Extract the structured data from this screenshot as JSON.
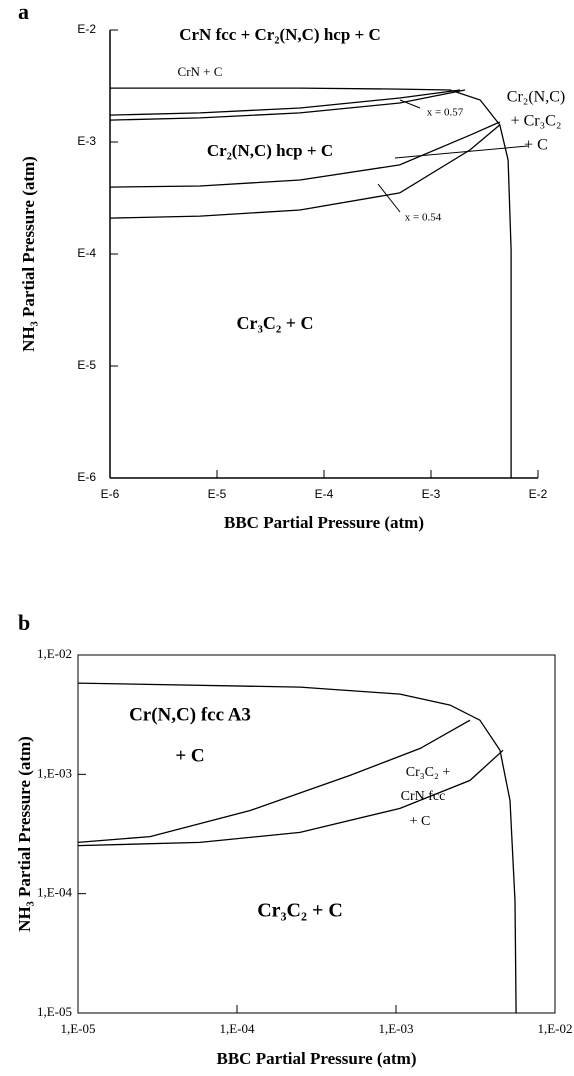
{
  "chart_data": [
    {
      "type": "line",
      "panel_label": "a",
      "xlabel": "BBC Partial Pressure (atm)",
      "ylabel": "NH₃ Partial Pressure (atm)",
      "log_x": true,
      "log_y": true,
      "box": false,
      "xlim": [
        1e-06,
        0.01
      ],
      "ylim": [
        1e-06,
        0.01
      ],
      "xticks": [
        {
          "value": 1e-06,
          "label": "E-6"
        },
        {
          "value": 1e-05,
          "label": "E-5"
        },
        {
          "value": 0.0001,
          "label": "E-4"
        },
        {
          "value": 0.001,
          "label": "E-3"
        },
        {
          "value": 0.01,
          "label": "E-2"
        }
      ],
      "yticks": [
        {
          "value": 1e-06,
          "label": "E-6"
        },
        {
          "value": 1e-05,
          "label": "E-5"
        },
        {
          "value": 0.0001,
          "label": "E-4"
        },
        {
          "value": 0.001,
          "label": "E-3"
        },
        {
          "value": 0.01,
          "label": "E-2"
        }
      ],
      "series": [
        {
          "color": "#000000",
          "x": [
            1e-06,
            5.97e-05,
            0.00051,
            0.00151,
            0.00288,
            0.0044,
            0.00525,
            0.0056,
            0.0056
          ],
          "values": [
            0.00303,
            0.00303,
            0.00297,
            0.00291,
            0.00237,
            0.00142,
            0.00069,
            0.000109,
            1e-06
          ]
        },
        {
          "color": "#000000",
          "x": [
            1e-06,
            6.93e-06,
            5.97e-05,
            0.00051,
            0.00187
          ],
          "values": [
            0.00174,
            0.00182,
            0.00201,
            0.00247,
            0.00291
          ]
        },
        {
          "color": "#000000",
          "x": [
            1e-06,
            6.93e-06,
            5.97e-05,
            0.00051,
            0.00208
          ],
          "values": [
            0.00157,
            0.00164,
            0.00182,
            0.00223,
            0.00291
          ]
        },
        {
          "color": "#000000",
          "x": [
            1e-06,
            6.93e-06,
            5.97e-05,
            0.00051,
            0.00231,
            0.0044
          ],
          "values": [
            0.000396,
            0.000405,
            0.000458,
            0.000624,
            0.00115,
            0.00151
          ]
        },
        {
          "color": "#000000",
          "x": [
            1e-06,
            6.93e-06,
            5.97e-05,
            0.00051,
            0.00231,
            0.0044
          ],
          "values": [
            0.000209,
            0.000218,
            0.000247,
            0.000351,
            0.000849,
            0.00142
          ]
        }
      ],
      "annotations": [
        "CrN fcc + Cr₂(N,C) hcp + C",
        "CrN  +  C",
        "x = 0.57",
        "Cr₂(N,C) hcp + C",
        "x = 0.54",
        "Cr₂(N,C)",
        "+ Cr₃C₂",
        "+ C",
        "Cr₃C₂ + C"
      ]
    },
    {
      "type": "line",
      "panel_label": "b",
      "xlabel": "BBC Partial Pressure (atm)",
      "ylabel": "NH₃ Partial Pressure (atm)",
      "log_x": true,
      "log_y": true,
      "box": true,
      "xlim": [
        1e-05,
        0.01
      ],
      "ylim": [
        1e-05,
        0.01
      ],
      "xticks": [
        {
          "value": 1e-05,
          "label": "1,E-05"
        },
        {
          "value": 0.0001,
          "label": "1,E-04"
        },
        {
          "value": 0.001,
          "label": "1,E-03"
        },
        {
          "value": 0.01,
          "label": "1,E-02"
        }
      ],
      "yticks": [
        {
          "value": 1e-05,
          "label": "1,E-05"
        },
        {
          "value": 0.0001,
          "label": "1,E-04"
        },
        {
          "value": 0.001,
          "label": "1,E-03"
        },
        {
          "value": 0.01,
          "label": "1,E-02"
        }
      ],
      "series": [
        {
          "color": "#000000",
          "x": [
            1e-05,
            0.000249,
            0.00106,
            0.00219,
            0.00337,
            0.00451,
            0.00521,
            0.0056,
            0.00569
          ],
          "values": [
            0.00582,
            0.00538,
            0.0047,
            0.0038,
            0.00284,
            0.00159,
            0.000605,
            8.7e-05,
            1e-05
          ]
        },
        {
          "color": "#000000",
          "x": [
            1e-05,
            2.84e-05,
            0.000121,
            0.000514,
            0.00142,
            0.00292
          ],
          "values": [
            0.000269,
            0.000301,
            0.000498,
            0.00098,
            0.00165,
            0.00284
          ]
        },
        {
          "color": "#000000",
          "x": [
            1e-05,
            5.85e-05,
            0.000249,
            0.00106,
            0.00292,
            0.00471
          ],
          "values": [
            0.000253,
            0.000269,
            0.000326,
            0.000518,
            0.00089,
            0.00159
          ]
        }
      ],
      "annotations": [
        "Cr(N,C) fcc A3",
        "+ C",
        "Cr₃C₂ +",
        "CrN fcc",
        "+ C",
        "Cr₃C₂ + C"
      ]
    }
  ]
}
